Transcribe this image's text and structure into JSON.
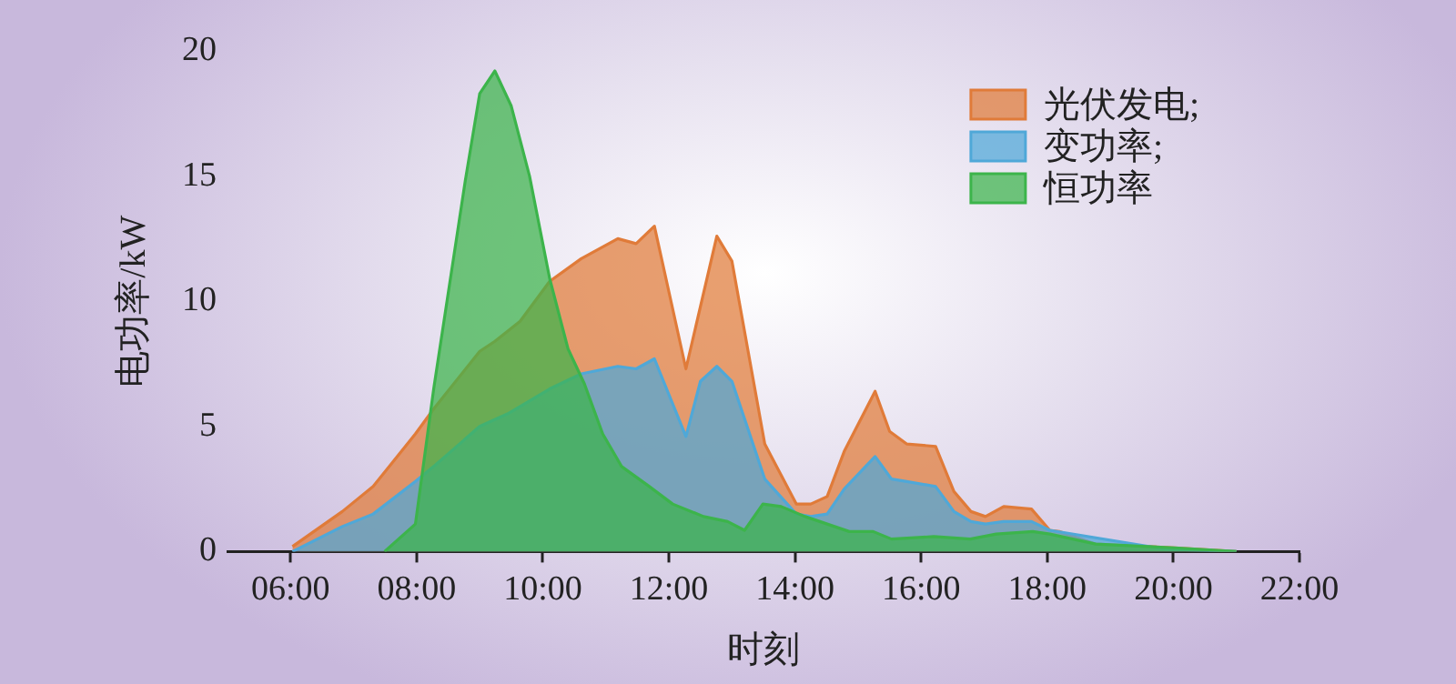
{
  "chart_data": {
    "type": "area",
    "xlabel": "时刻",
    "ylabel": "电功率/kW",
    "xlim": [
      5,
      22
    ],
    "xticks": [
      {
        "value": 6,
        "label": "06:00"
      },
      {
        "value": 8,
        "label": "08:00"
      },
      {
        "value": 10,
        "label": "10:00"
      },
      {
        "value": 12,
        "label": "12:00"
      },
      {
        "value": 14,
        "label": "14:00"
      },
      {
        "value": 16,
        "label": "16:00"
      },
      {
        "value": 18,
        "label": "18:00"
      },
      {
        "value": 20,
        "label": "20:00"
      },
      {
        "value": 22,
        "label": "22:00"
      }
    ],
    "ylim": [
      0,
      20
    ],
    "yticks": [
      0,
      5,
      10,
      15,
      20
    ],
    "grid": false,
    "legend": "top right",
    "marker": "none",
    "line_style": "solid",
    "series": [
      {
        "name": "光伏发电;",
        "color": "#e07b39",
        "x": [
          6.03,
          6.82,
          7.31,
          7.98,
          8.27,
          9.0,
          9.24,
          9.64,
          10.11,
          10.61,
          11.19,
          11.48,
          11.77,
          12.27,
          12.76,
          13.0,
          13.52,
          14.02,
          14.25,
          14.51,
          14.78,
          15.27,
          15.5,
          15.77,
          16.23,
          16.52,
          16.79,
          17.02,
          17.31,
          17.75,
          18.04,
          18.19,
          18.77,
          20.02,
          21.0
        ],
        "values": [
          0.2,
          1.6,
          2.6,
          4.7,
          5.7,
          8.0,
          8.4,
          9.2,
          10.8,
          11.7,
          12.5,
          12.3,
          13.0,
          7.3,
          12.6,
          11.6,
          4.3,
          1.9,
          1.9,
          2.2,
          4.0,
          6.4,
          4.8,
          4.3,
          4.2,
          2.4,
          1.6,
          1.4,
          1.8,
          1.7,
          0.85,
          0.8,
          0.3,
          0.15,
          0
        ]
      },
      {
        "name": "变功率;",
        "color": "#4fa8d8",
        "x": [
          6.03,
          6.82,
          7.31,
          7.98,
          8.27,
          9.0,
          9.44,
          10.11,
          10.61,
          11.19,
          11.48,
          11.77,
          12.27,
          12.5,
          12.76,
          13.0,
          13.24,
          13.52,
          14.02,
          14.25,
          14.51,
          14.78,
          15.27,
          15.53,
          15.77,
          16.23,
          16.52,
          16.79,
          17.02,
          17.31,
          17.75,
          18.04,
          19.87,
          21.0
        ],
        "values": [
          0,
          1.0,
          1.5,
          2.8,
          3.4,
          5.0,
          5.5,
          6.5,
          7.1,
          7.4,
          7.3,
          7.7,
          4.6,
          6.8,
          7.4,
          6.8,
          5.0,
          2.9,
          1.5,
          1.4,
          1.5,
          2.5,
          3.8,
          2.9,
          2.8,
          2.6,
          1.6,
          1.2,
          1.1,
          1.2,
          1.2,
          0.85,
          0.1,
          0
        ]
      },
      {
        "name": "恒功率",
        "color": "#3cb44b",
        "x": [
          7.49,
          7.98,
          8.27,
          8.77,
          9.0,
          9.24,
          9.5,
          9.79,
          10.11,
          10.4,
          10.66,
          10.95,
          11.25,
          11.69,
          12.06,
          12.55,
          12.93,
          13.2,
          13.49,
          13.78,
          14.16,
          14.51,
          14.86,
          15.24,
          15.53,
          16.2,
          16.78,
          17.19,
          17.77,
          18.04,
          18.77,
          20.02,
          21.0
        ],
        "values": [
          0,
          1.1,
          6.5,
          14.8,
          18.3,
          19.2,
          17.8,
          15.0,
          10.9,
          8.1,
          6.7,
          4.7,
          3.4,
          2.6,
          1.9,
          1.4,
          1.2,
          0.85,
          1.9,
          1.8,
          1.4,
          1.1,
          0.8,
          0.8,
          0.5,
          0.6,
          0.5,
          0.7,
          0.8,
          0.7,
          0.3,
          0.15,
          0
        ]
      }
    ]
  }
}
